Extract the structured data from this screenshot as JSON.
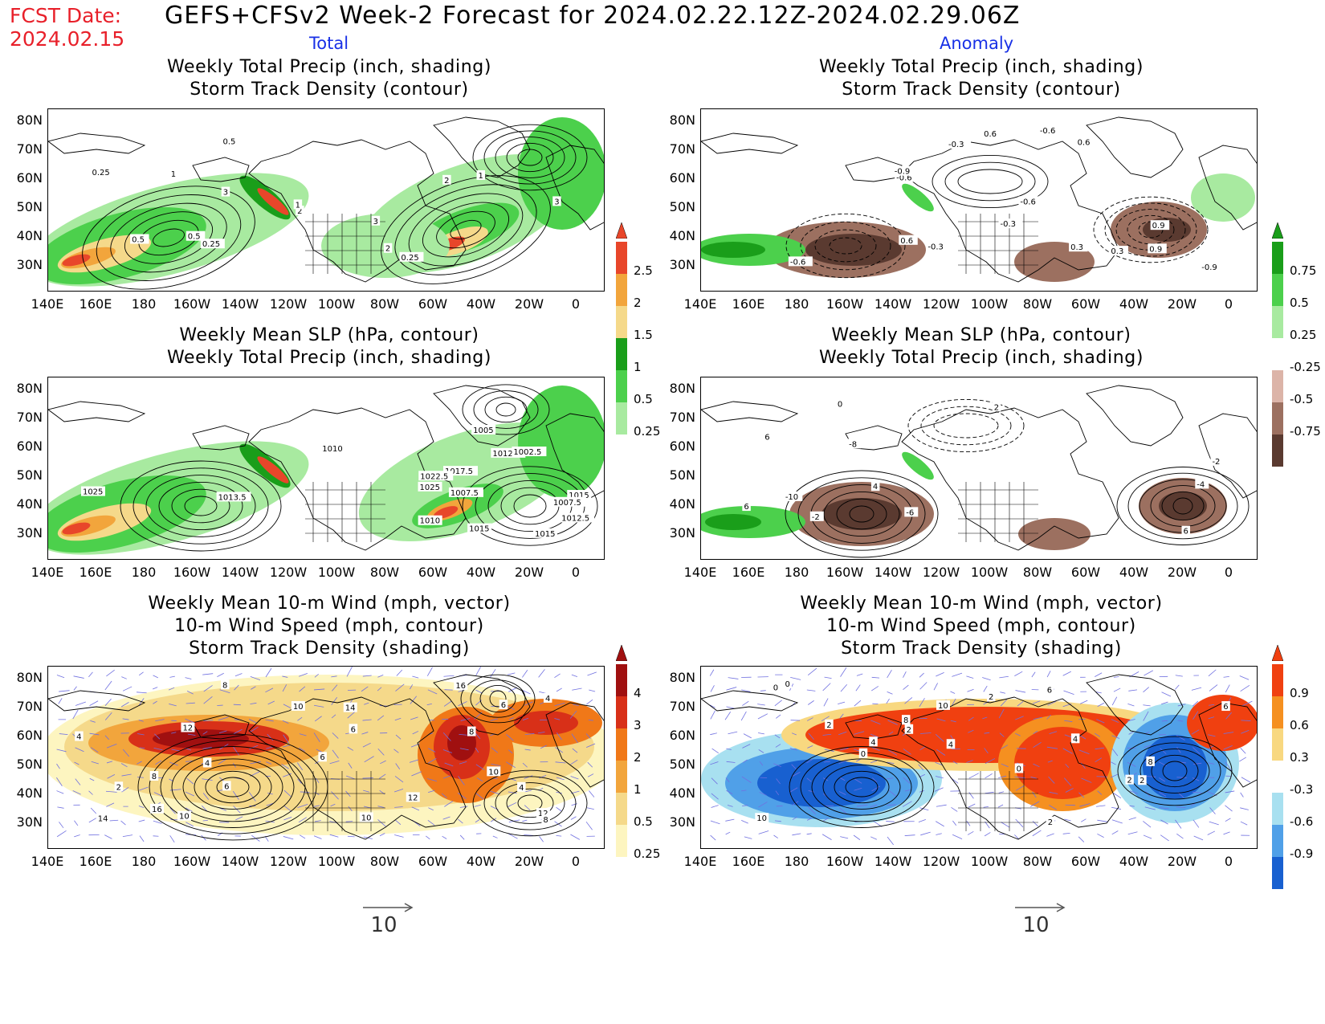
{
  "header": {
    "fcst_label": "FCST Date:",
    "fcst_date": "2024.02.15",
    "title": "GEFS+CFSv2 Week-2 Forecast for 2024.02.22.12Z-2024.02.29.06Z",
    "col_total": "Total",
    "col_anomaly": "Anomaly"
  },
  "axes": {
    "lat_labels": [
      "80N",
      "70N",
      "60N",
      "50N",
      "40N",
      "30N"
    ],
    "lon_labels": [
      "140E",
      "160E",
      "180",
      "160W",
      "140W",
      "120W",
      "100W",
      "80W",
      "60W",
      "40W",
      "20W",
      "0"
    ]
  },
  "panels": [
    {
      "id": "p1",
      "title1": "Weekly Total Precip (inch, shading)",
      "title2": "Storm Track Density (contour)",
      "title3": "",
      "contour_labels": [
        "0.25",
        "0.5",
        "0.5",
        "1",
        "1",
        "2",
        "3",
        "3",
        "2",
        "0.25",
        "0.5",
        "0.25",
        "1",
        "3",
        "2"
      ]
    },
    {
      "id": "p2",
      "title1": "Weekly Total Precip (inch, shading)",
      "title2": "Storm Track Density (contour)",
      "title3": "",
      "contour_labels": [
        "-0.6",
        "0.9",
        "-0.6",
        "-0.3",
        "-0.3",
        "-0.6",
        "0.9",
        "0.6",
        "0.3",
        "0.6",
        "-0.9",
        "-0.6",
        "-0.3",
        "0.6",
        "0.3",
        "-0.9"
      ]
    },
    {
      "id": "p3",
      "title1": "Weekly Mean SLP (hPa, contour)",
      "title2": "Weekly Total Precip (inch, shading)",
      "title3": "",
      "contour_labels": [
        "1025",
        "1015",
        "1012.5",
        "1007.5",
        "1010",
        "1005",
        "1002.5",
        "1010",
        "1012.5",
        "1015",
        "1017.5",
        "1022.5",
        "1025",
        "1007.5",
        "1013.5",
        "1015"
      ]
    },
    {
      "id": "p4",
      "title1": "Weekly Mean SLP (hPa, contour)",
      "title2": "Weekly Total Precip (inch, shading)",
      "title3": "",
      "contour_labels": [
        "-8",
        "-10",
        "6",
        "-6",
        "-4",
        "-2",
        "6",
        "4",
        "-2",
        "0",
        "2",
        "6"
      ]
    },
    {
      "id": "p5",
      "title1": "Weekly Mean 10-m Wind (mph, vector)",
      "title2": "10-m Wind Speed (mph, contour)",
      "title3": "Storm Track Density (shading)",
      "contour_labels": [
        "4",
        "6",
        "12",
        "10",
        "8",
        "6",
        "2",
        "6",
        "4",
        "4",
        "8",
        "10",
        "12",
        "14",
        "16",
        "8",
        "6",
        "16",
        "14",
        "12",
        "10",
        "4",
        "10",
        "8"
      ]
    },
    {
      "id": "p6",
      "title1": "Weekly Mean 10-m Wind (mph, vector)",
      "title2": "10-m Wind Speed (mph, contour)",
      "title3": "Storm Track Density (shading)",
      "contour_labels": [
        "2",
        "0",
        "2",
        "4",
        "6",
        "2",
        "0",
        "4",
        "8",
        "2",
        "10",
        "8",
        "2",
        "0",
        "10",
        "2",
        "0",
        "4",
        "6"
      ]
    }
  ],
  "colorbars": {
    "precip_total": {
      "labels": [
        "2.5",
        "2",
        "1.5",
        "1",
        "0.5",
        "0.25"
      ],
      "colors": [
        "#e8462a",
        "#f2a53c",
        "#f5d98a",
        "#1a9e1a",
        "#4cd04c",
        "#a8eaa0"
      ]
    },
    "precip_anom": {
      "labels": [
        "0.75",
        "0.5",
        "0.25",
        "-0.25",
        "-0.5",
        "-0.75"
      ],
      "colors": [
        "#1a9e1a",
        "#4cd04c",
        "#a8eaa0",
        "#ffffff",
        "#dcb4a8",
        "#9c7060",
        "#5a3a30"
      ]
    },
    "storm_total": {
      "labels": [
        "4",
        "3",
        "2",
        "1",
        "0.5",
        "0.25"
      ],
      "colors": [
        "#a01010",
        "#d83018",
        "#f07818",
        "#f2a53c",
        "#f5d98a",
        "#fdf5c0"
      ]
    },
    "storm_anom": {
      "labels": [
        "0.9",
        "0.6",
        "0.3",
        "-0.3",
        "-0.6",
        "-0.9"
      ],
      "colors": [
        "#f04010",
        "#f59020",
        "#f8d880",
        "#ffffff",
        "#a8e0f0",
        "#50a0e8",
        "#1860d0"
      ]
    }
  },
  "vector_reference": {
    "left": "10",
    "right": "10"
  }
}
